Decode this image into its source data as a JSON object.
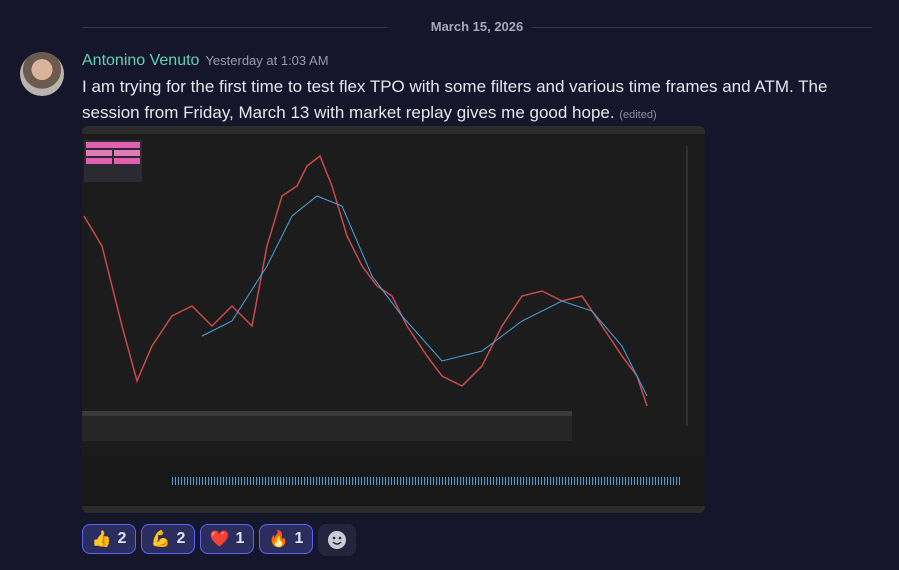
{
  "date_divider": "March 15, 2026",
  "message": {
    "author": "Antonino Venuto",
    "timestamp": "Yesterday at 1:03 AM",
    "text": "I am trying for the first time to test flex TPO with some filters and various time frames and ATM. The session from Friday, March 13  with market replay gives me good hope.",
    "edited": "(edited)"
  },
  "reactions": [
    {
      "emoji": "👍",
      "count": 2
    },
    {
      "emoji": "💪",
      "count": 2
    },
    {
      "emoji": "❤️",
      "count": 1
    },
    {
      "emoji": "🔥",
      "count": 1
    }
  ]
}
